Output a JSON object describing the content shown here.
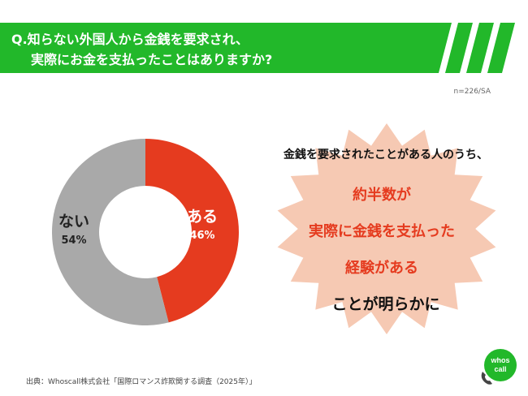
{
  "header": {
    "question_line1": "Q.知らない外国人から金銭を要求され、",
    "question_line2": "実際にお金を支払ったことはありますか?"
  },
  "sample_note": "n=226/SA",
  "colors": {
    "banner_green": "#22b82a",
    "segment_aru": "#e53b1f",
    "segment_nai": "#a9a9a9",
    "burst_fill": "#f6c9b3",
    "highlight_text": "#e53b1f"
  },
  "chart_data": {
    "type": "pie",
    "style": "donut",
    "labels": [
      "ある",
      "ない"
    ],
    "values": [
      46,
      54
    ],
    "value_labels": [
      "46%",
      "54%"
    ],
    "colors": [
      "#e53b1f",
      "#a9a9a9"
    ]
  },
  "callout": {
    "lead": "金銭を要求されたことがある人のうち、",
    "highlight_lines": [
      "約半数が",
      "実際に金銭を支払った",
      "経験がある"
    ],
    "tail": "ことが明らかに"
  },
  "source": "出典：Whoscall株式会社「国際ロマンス詐欺関する調査（2025年）」",
  "logo": {
    "icon": "phone-icon",
    "text_line1": "whos",
    "text_line2": "call"
  }
}
